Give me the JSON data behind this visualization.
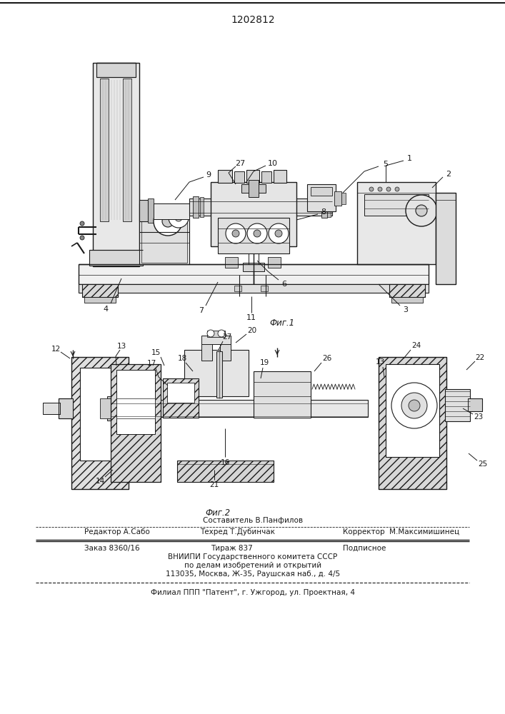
{
  "patent_number": "1202812",
  "fig1_caption": "Фиг.1",
  "fig2_caption": "Фиг.2",
  "composer_line": "Составитель В.Панфилов",
  "editor_left": "Редактор А.Сабо",
  "editor_mid": "Техред Т.Дубинчак",
  "editor_right": "Корректор  М.Максимишинец",
  "order_left": "Заказ 8360/16",
  "order_mid": "Тираж 837",
  "order_right": "Подписное",
  "vniiipi_line1": "ВНИИПИ Государственного комитета СССР",
  "vniiipi_line2": "по делам изобретений и открытий",
  "vniiipi_line3": "113035, Москва, Ж-35, Раушская наб., д. 4/5",
  "filial_line": "Филиал ППП \"Патент\", г. Ужгород, ул. Проектная, 4",
  "bg_color": "#ffffff",
  "line_color": "#1a1a1a"
}
